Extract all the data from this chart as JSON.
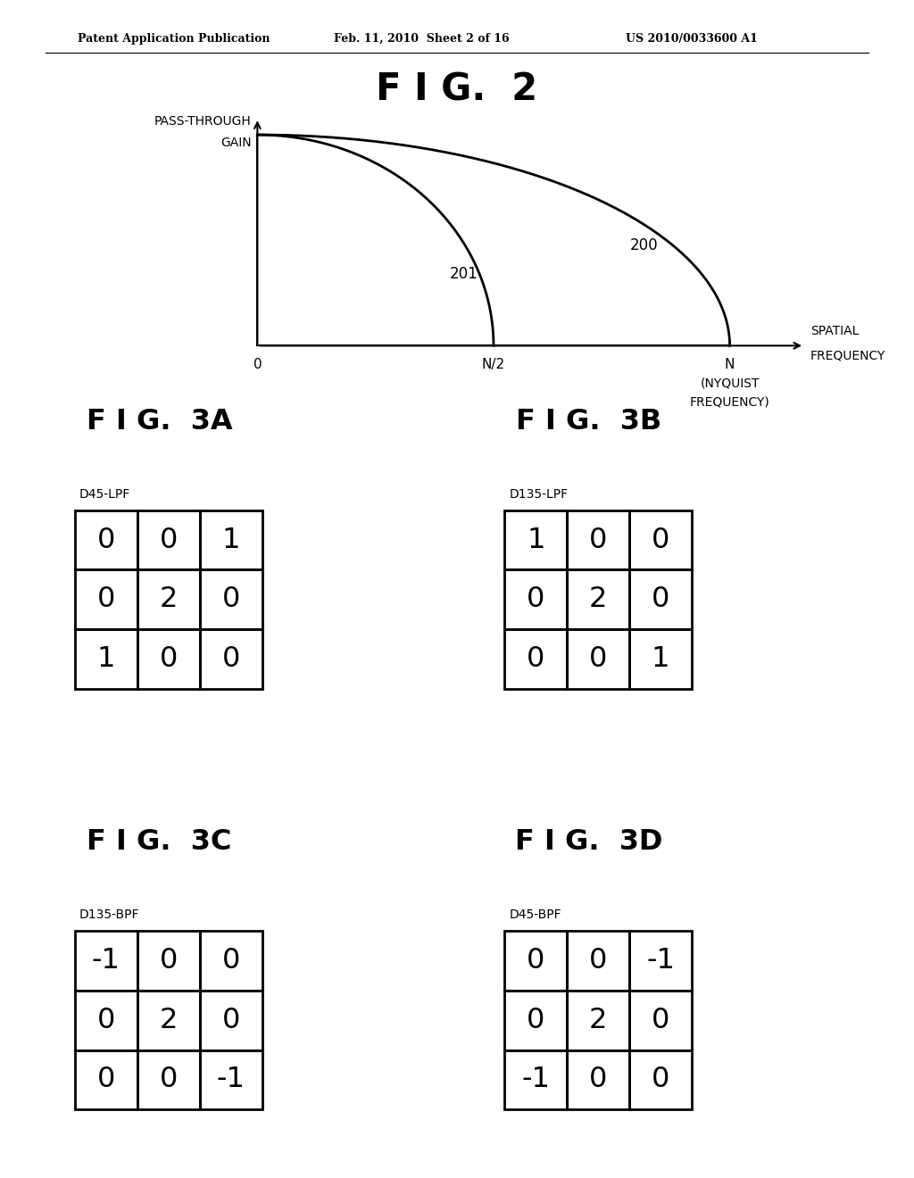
{
  "title_fig2": "F I G.  2",
  "title_fig3a": "F I G.  3A",
  "title_fig3b": "F I G.  3B",
  "title_fig3c": "F I G.  3C",
  "title_fig3d": "F I G.  3D",
  "header_text": "Patent Application Publication",
  "header_date": "Feb. 11, 2010  Sheet 2 of 16",
  "header_patent": "US 2010/0033600 A1",
  "label_passthrough_1": "PASS-THROUGH",
  "label_passthrough_2": "GAIN",
  "label_spatial_1": "SPATIAL",
  "label_spatial_2": "FREQUENCY",
  "label_0": "0",
  "label_n2": "N/2",
  "label_n": "N",
  "label_nyquist_1": "(NYQUIST",
  "label_nyquist_2": "FREQUENCY)",
  "curve200_label": "200",
  "curve201_label": "201",
  "label_3a": "D45-LPF",
  "label_3b": "D135-LPF",
  "label_3c": "D135-BPF",
  "label_3d": "D45-BPF",
  "matrix_3a": [
    [
      0,
      0,
      1
    ],
    [
      0,
      2,
      0
    ],
    [
      1,
      0,
      0
    ]
  ],
  "matrix_3b": [
    [
      1,
      0,
      0
    ],
    [
      0,
      2,
      0
    ],
    [
      0,
      0,
      1
    ]
  ],
  "matrix_3c": [
    [
      -1,
      0,
      0
    ],
    [
      0,
      2,
      0
    ],
    [
      0,
      0,
      -1
    ]
  ],
  "matrix_3d": [
    [
      0,
      0,
      -1
    ],
    [
      0,
      2,
      0
    ],
    [
      -1,
      0,
      0
    ]
  ],
  "bg_color": "#ffffff",
  "line_color": "#000000"
}
